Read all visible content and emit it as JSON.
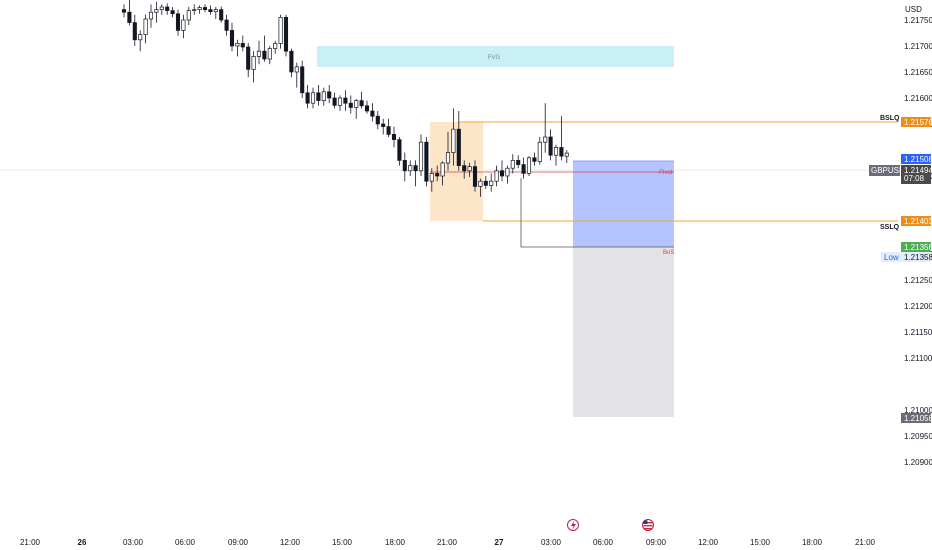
{
  "instrument": {
    "symbol": "GBPUSD",
    "currency": "USD"
  },
  "price_axis": {
    "ticks": [
      "1.21750",
      "1.21700",
      "1.21650",
      "1.21600",
      "1.21550",
      "1.21450",
      "1.21300",
      "1.21250",
      "1.21200",
      "1.21150",
      "1.21100",
      "1.21000",
      "1.20950",
      "1.20900"
    ]
  },
  "price_labels": {
    "bslq": "1.21576",
    "upper": "1.21508",
    "last": "1.21494",
    "countdown": "07:08",
    "sslq": "1.21403",
    "green": "1.21358",
    "low_text": "Low",
    "low_value": "1.21358",
    "stop": "1.21058"
  },
  "time_axis": {
    "labels": [
      "21:00",
      "26",
      "03:00",
      "06:00",
      "09:00",
      "12:00",
      "15:00",
      "18:00",
      "21:00",
      "27",
      "03:00",
      "06:00",
      "09:00",
      "12:00",
      "15:00",
      "18:00",
      "21:00"
    ]
  },
  "annotations": {
    "fvg": "FVG",
    "bslq": "BSLQ",
    "sslq": "SSLQ",
    "pivot": "Pivot",
    "bos": "BoS"
  },
  "colors": {
    "up": "#ffffff",
    "down": "#131722",
    "fvg_fill": "#c9f1f5",
    "orange_box": "#fce5c8",
    "liquidity_line": "#f0a830",
    "blue_box": "#b3c4ff",
    "gray_box": "#e3e3e5",
    "pivot_line": "#e03b4c",
    "last_price_bg": "#4a4a4a",
    "upper_bg": "#2962ff",
    "green_bg": "#4caf50",
    "orange_bg": "#f08c1a"
  },
  "events": {
    "lightning_icon": "lightning-icon",
    "flag_icon": "us-flag-icon"
  },
  "chart_data": {
    "type": "candlestick",
    "columns": [
      "open",
      "high",
      "low",
      "close"
    ],
    "candles": [
      [
        1.2177,
        1.2178,
        1.21755,
        1.21765
      ],
      [
        1.21765,
        1.2179,
        1.2174,
        1.21745
      ],
      [
        1.21745,
        1.2176,
        1.217,
        1.21712
      ],
      [
        1.21712,
        1.2173,
        1.2169,
        1.21722
      ],
      [
        1.21722,
        1.2176,
        1.21705,
        1.21752
      ],
      [
        1.21752,
        1.2178,
        1.21735,
        1.21765
      ],
      [
        1.21765,
        1.21785,
        1.21745,
        1.2177
      ],
      [
        1.2177,
        1.2178,
        1.2176,
        1.21775
      ],
      [
        1.21775,
        1.21782,
        1.2176,
        1.21768
      ],
      [
        1.21768,
        1.21775,
        1.21755,
        1.21762
      ],
      [
        1.21762,
        1.2177,
        1.2172,
        1.2173
      ],
      [
        1.2173,
        1.2176,
        1.21715,
        1.2175
      ],
      [
        1.2175,
        1.21775,
        1.2174,
        1.21768
      ],
      [
        1.21768,
        1.2178,
        1.2176,
        1.2177
      ],
      [
        1.2177,
        1.21778,
        1.21762,
        1.21774
      ],
      [
        1.21774,
        1.2178,
        1.21765,
        1.2177
      ],
      [
        1.2177,
        1.21778,
        1.2176,
        1.21766
      ],
      [
        1.21766,
        1.21775,
        1.21752,
        1.2177
      ],
      [
        1.2177,
        1.21776,
        1.21745,
        1.2175
      ],
      [
        1.2175,
        1.2176,
        1.2172,
        1.2173
      ],
      [
        1.2173,
        1.21745,
        1.2169,
        1.217
      ],
      [
        1.217,
        1.21712,
        1.2168,
        1.21705
      ],
      [
        1.21705,
        1.2172,
        1.2169,
        1.21698
      ],
      [
        1.21698,
        1.21706,
        1.2164,
        1.21655
      ],
      [
        1.21655,
        1.2169,
        1.2163,
        1.2168
      ],
      [
        1.2168,
        1.2171,
        1.21665,
        1.2169
      ],
      [
        1.2169,
        1.2172,
        1.2167,
        1.21675
      ],
      [
        1.21675,
        1.217,
        1.21665,
        1.21695
      ],
      [
        1.21695,
        1.2171,
        1.21685,
        1.21705
      ],
      [
        1.21705,
        1.2176,
        1.21695,
        1.21755
      ],
      [
        1.21755,
        1.2176,
        1.2168,
        1.2169
      ],
      [
        1.2169,
        1.21695,
        1.2164,
        1.2165
      ],
      [
        1.2165,
        1.21668,
        1.2162,
        1.2166
      ],
      [
        1.2166,
        1.21672,
        1.216,
        1.2161
      ],
      [
        1.2161,
        1.21625,
        1.2158,
        1.2159
      ],
      [
        1.2159,
        1.2162,
        1.2158,
        1.2161
      ],
      [
        1.2161,
        1.21625,
        1.21585,
        1.21595
      ],
      [
        1.21595,
        1.2162,
        1.21585,
        1.21612
      ],
      [
        1.21612,
        1.21625,
        1.2159,
        1.216
      ],
      [
        1.216,
        1.2161,
        1.2158,
        1.21586
      ],
      [
        1.21586,
        1.21605,
        1.21575,
        1.216
      ],
      [
        1.216,
        1.21615,
        1.21575,
        1.2159
      ],
      [
        1.2159,
        1.21605,
        1.2157,
        1.21582
      ],
      [
        1.21582,
        1.21598,
        1.2156,
        1.21595
      ],
      [
        1.21595,
        1.21612,
        1.2158,
        1.21585
      ],
      [
        1.21585,
        1.21595,
        1.2157,
        1.21575
      ],
      [
        1.21575,
        1.2159,
        1.21555,
        1.21565
      ],
      [
        1.21565,
        1.21575,
        1.2154,
        1.2155
      ],
      [
        1.2155,
        1.2156,
        1.2153,
        1.21545
      ],
      [
        1.21545,
        1.2156,
        1.21525,
        1.2153
      ],
      [
        1.2153,
        1.21545,
        1.21505,
        1.2152
      ],
      [
        1.2152,
        1.21525,
        1.2147,
        1.2148
      ],
      [
        1.2148,
        1.21495,
        1.2144,
        1.2146
      ],
      [
        1.2146,
        1.2148,
        1.2145,
        1.2147
      ],
      [
        1.2147,
        1.2148,
        1.2143,
        1.2146
      ],
      [
        1.2146,
        1.2153,
        1.2145,
        1.21515
      ],
      [
        1.21515,
        1.21525,
        1.2143,
        1.2144
      ],
      [
        1.2144,
        1.21465,
        1.2142,
        1.21455
      ],
      [
        1.21455,
        1.2147,
        1.2144,
        1.2145
      ],
      [
        1.2145,
        1.21478,
        1.21432,
        1.21475
      ],
      [
        1.21475,
        1.21535,
        1.2146,
        1.21495
      ],
      [
        1.21495,
        1.2158,
        1.2147,
        1.2154
      ],
      [
        1.2154,
        1.21575,
        1.2146,
        1.2147
      ],
      [
        1.2147,
        1.2148,
        1.21445,
        1.2146
      ],
      [
        1.2146,
        1.21475,
        1.21448,
        1.21468
      ],
      [
        1.21468,
        1.2148,
        1.2142,
        1.2143
      ],
      [
        1.2143,
        1.21445,
        1.2141,
        1.2144
      ],
      [
        1.2144,
        1.2145,
        1.21425,
        1.21432
      ],
      [
        1.21432,
        1.21455,
        1.2142,
        1.2144
      ],
      [
        1.2144,
        1.2147,
        1.2143,
        1.2146
      ],
      [
        1.2146,
        1.2148,
        1.2144,
        1.2145
      ],
      [
        1.2145,
        1.2147,
        1.21435,
        1.21465
      ],
      [
        1.21465,
        1.21492,
        1.21455,
        1.2148
      ],
      [
        1.2148,
        1.2149,
        1.21465,
        1.21472
      ],
      [
        1.21472,
        1.21485,
        1.21445,
        1.21455
      ],
      [
        1.21455,
        1.21488,
        1.2145,
        1.21485
      ],
      [
        1.21485,
        1.21495,
        1.2147,
        1.21478
      ],
      [
        1.21478,
        1.21525,
        1.21472,
        1.21515
      ],
      [
        1.21515,
        1.2159,
        1.21495,
        1.21525
      ],
      [
        1.21525,
        1.2154,
        1.2148,
        1.2149
      ],
      [
        1.2149,
        1.2151,
        1.2147,
        1.21505
      ],
      [
        1.21505,
        1.21565,
        1.2148,
        1.21488
      ],
      [
        1.21488,
        1.215,
        1.21475,
        1.21494
      ]
    ]
  }
}
